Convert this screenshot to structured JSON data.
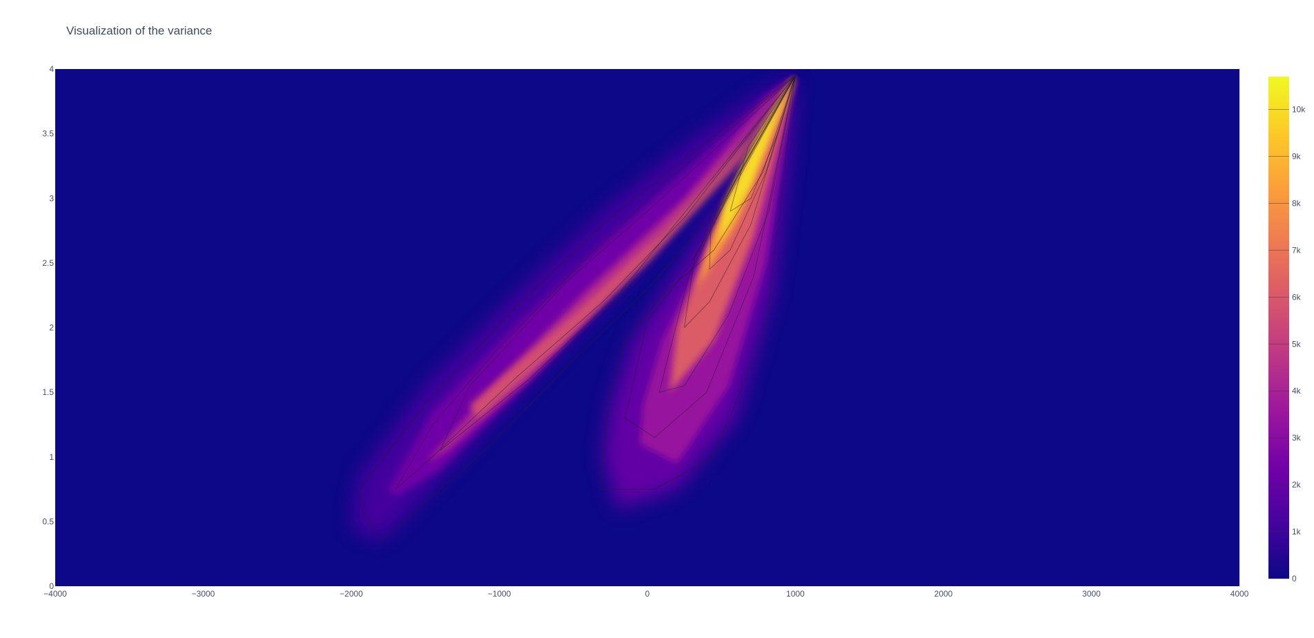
{
  "chart_data": {
    "type": "heatmap",
    "title": "Visualization of the variance",
    "xlabel": "",
    "ylabel": "",
    "xlim": [
      -4000,
      4000
    ],
    "ylim": [
      0,
      4
    ],
    "x_ticks": [
      "−4000",
      "−3000",
      "−2000",
      "−1000",
      "0",
      "1000",
      "2000",
      "3000",
      "4000"
    ],
    "x_tick_values": [
      -4000,
      -3000,
      -2000,
      -1000,
      0,
      1000,
      2000,
      3000,
      4000
    ],
    "y_ticks": [
      "0",
      "0.5",
      "1",
      "1.5",
      "2",
      "2.5",
      "3",
      "3.5",
      "4"
    ],
    "y_tick_values": [
      0,
      0.5,
      1,
      1.5,
      2,
      2.5,
      3,
      3.5,
      4
    ],
    "colorbar": {
      "range": [
        0,
        10700
      ],
      "ticks": [
        "0",
        "1k",
        "2k",
        "3k",
        "4k",
        "5k",
        "6k",
        "7k",
        "8k",
        "9k",
        "10k"
      ],
      "tick_values": [
        0,
        1000,
        2000,
        3000,
        4000,
        5000,
        6000,
        7000,
        8000,
        9000,
        10000
      ],
      "colorscale": "Plasma"
    },
    "contours": true,
    "colors": {
      "background": "#0d0887",
      "peak": "#f0f921",
      "contour_line": "#222222"
    },
    "peak": {
      "x": 1000,
      "y": 3.95,
      "value": 10700
    },
    "lobes": [
      {
        "name_hint": "diagonal ridge",
        "x_start": -1800,
        "y_start": 0.4,
        "x_end": 1000,
        "y_end": 3.95,
        "peak_value": 7000
      },
      {
        "name_hint": "inner ridge",
        "x_start": 150,
        "y_start": 0.9,
        "x_end": 1000,
        "y_end": 3.95,
        "peak_value": 10700
      }
    ]
  }
}
